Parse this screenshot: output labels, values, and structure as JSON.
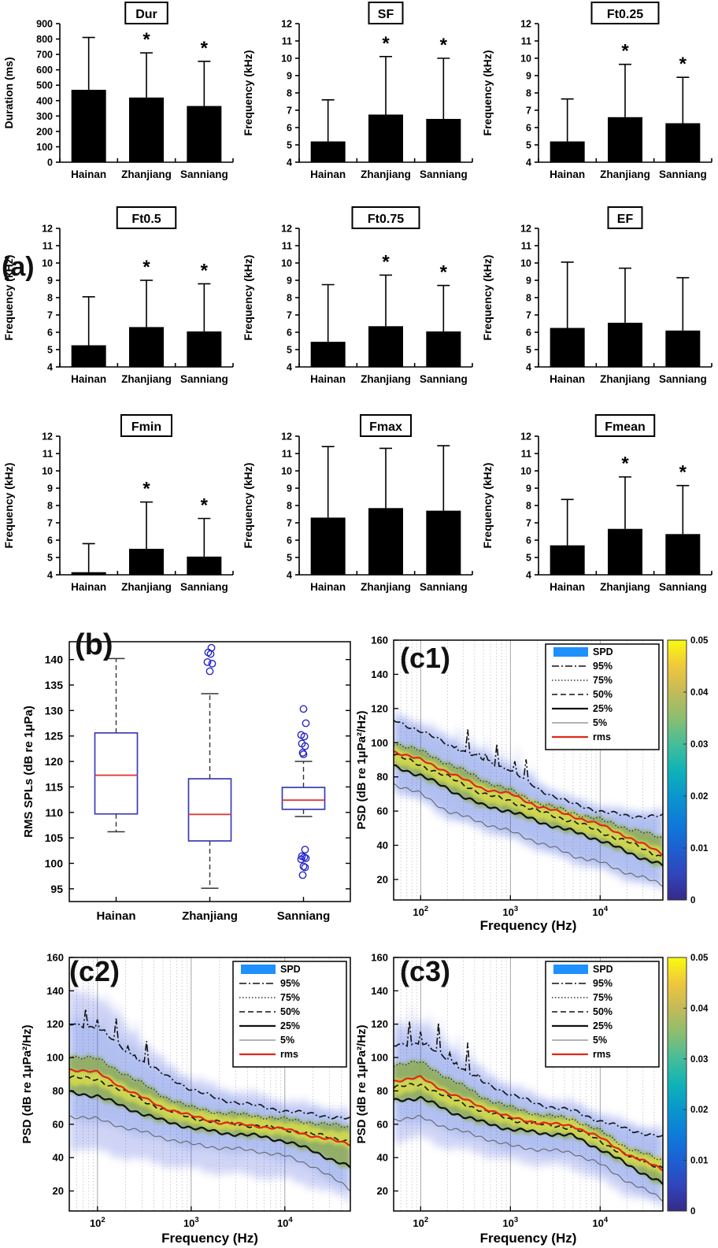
{
  "ui": {
    "panel_labels": {
      "a": "(a)",
      "b": "(b)",
      "c1": "(c1)",
      "c2": "(c2)",
      "c3": "(c3)"
    },
    "sig_marker": "*",
    "colors": {
      "bar": "#000000",
      "box_edge": "#3a3ab8",
      "median": "#e03a3a",
      "outlier": "#2626cc",
      "rms_line": "#e02818",
      "spd_patch": "#1e90ff",
      "colorbar_low": "#352a87",
      "colorbar_high": "#f9fb0e"
    }
  },
  "chart_data": [
    {
      "id": "dur",
      "type": "bar",
      "title": "Dur",
      "ylabel": "Duration (ms)",
      "ylim": [
        0,
        900
      ],
      "ytick_step": 100,
      "categories": [
        "Hainan",
        "Zhanjiang",
        "Sanniang"
      ],
      "values": [
        470,
        420,
        365
      ],
      "error_tops": [
        810,
        710,
        655
      ],
      "significant": [
        false,
        true,
        true
      ]
    },
    {
      "id": "sf",
      "type": "bar",
      "title": "SF",
      "ylabel": "Frequency (kHz)",
      "ylim": [
        4,
        12
      ],
      "ytick_step": 1,
      "categories": [
        "Hainan",
        "Zhanjiang",
        "Sanniang"
      ],
      "values": [
        5.2,
        6.75,
        6.5
      ],
      "error_tops": [
        7.6,
        10.1,
        10.0
      ],
      "significant": [
        false,
        true,
        true
      ]
    },
    {
      "id": "ft025",
      "type": "bar",
      "title": "Ft0.25",
      "ylabel": "Frequency (kHz)",
      "ylim": [
        4,
        12
      ],
      "ytick_step": 1,
      "categories": [
        "Hainan",
        "Zhanjiang",
        "Sanniang"
      ],
      "values": [
        5.2,
        6.6,
        6.25
      ],
      "error_tops": [
        7.65,
        9.65,
        8.9
      ],
      "significant": [
        false,
        true,
        true
      ]
    },
    {
      "id": "ft05",
      "type": "bar",
      "title": "Ft0.5",
      "ylabel": "Frequency (kHz)",
      "ylim": [
        4,
        12
      ],
      "ytick_step": 1,
      "categories": [
        "Hainan",
        "Zhanjiang",
        "Sanniang"
      ],
      "values": [
        5.25,
        6.3,
        6.05
      ],
      "error_tops": [
        8.05,
        9.0,
        8.8
      ],
      "significant": [
        false,
        true,
        true
      ]
    },
    {
      "id": "ft075",
      "type": "bar",
      "title": "Ft0.75",
      "ylabel": "Frequency (kHz)",
      "ylim": [
        4,
        12
      ],
      "ytick_step": 1,
      "categories": [
        "Hainan",
        "Zhanjiang",
        "Sanniang"
      ],
      "values": [
        5.45,
        6.35,
        6.05
      ],
      "error_tops": [
        8.75,
        9.3,
        8.7
      ],
      "significant": [
        false,
        true,
        true
      ]
    },
    {
      "id": "ef",
      "type": "bar",
      "title": "EF",
      "ylabel": "Frequency (kHz)",
      "ylim": [
        4,
        12
      ],
      "ytick_step": 1,
      "categories": [
        "Hainan",
        "Zhanjiang",
        "Sanniang"
      ],
      "values": [
        6.25,
        6.55,
        6.1
      ],
      "error_tops": [
        10.05,
        9.7,
        9.15
      ],
      "significant": [
        false,
        false,
        false
      ]
    },
    {
      "id": "fmin",
      "type": "bar",
      "title": "Fmin",
      "ylabel": "Frequency (kHz)",
      "ylim": [
        4,
        12
      ],
      "ytick_step": 1,
      "categories": [
        "Hainan",
        "Zhanjiang",
        "Sanniang"
      ],
      "values": [
        4.15,
        5.5,
        5.05
      ],
      "error_tops": [
        5.8,
        8.2,
        7.25
      ],
      "significant": [
        false,
        true,
        true
      ]
    },
    {
      "id": "fmax",
      "type": "bar",
      "title": "Fmax",
      "ylabel": "Frequency (kHz)",
      "ylim": [
        4,
        12
      ],
      "ytick_step": 1,
      "categories": [
        "Hainan",
        "Zhanjiang",
        "Sanniang"
      ],
      "values": [
        7.3,
        7.85,
        7.7
      ],
      "error_tops": [
        11.4,
        11.3,
        11.45
      ],
      "significant": [
        false,
        false,
        false
      ]
    },
    {
      "id": "fmean",
      "type": "bar",
      "title": "Fmean",
      "ylabel": "Frequency (kHz)",
      "ylim": [
        4,
        12
      ],
      "ytick_step": 1,
      "categories": [
        "Hainan",
        "Zhanjiang",
        "Sanniang"
      ],
      "values": [
        5.7,
        6.65,
        6.35
      ],
      "error_tops": [
        8.35,
        9.65,
        9.15
      ],
      "significant": [
        false,
        true,
        true
      ]
    },
    {
      "id": "b",
      "type": "box",
      "ylabel": "RMS SPLs (dB re 1μPa)",
      "ylim": [
        92.5,
        143.5
      ],
      "yticks": [
        95,
        100,
        105,
        110,
        115,
        120,
        125,
        130,
        135,
        140
      ],
      "categories": [
        "Hainan",
        "Zhanjiang",
        "Sanniang"
      ],
      "boxes": [
        {
          "label": "Hainan",
          "whisker_low": 106.2,
          "q1": 109.7,
          "median": 117.3,
          "q3": 125.6,
          "whisker_high": 140.2,
          "outliers": []
        },
        {
          "label": "Zhanjiang",
          "whisker_low": 95.1,
          "q1": 104.4,
          "median": 109.6,
          "q3": 116.6,
          "whisker_high": 133.3,
          "outliers": [
            137.7,
            139.2,
            139.5,
            141.1,
            141.4,
            142.3
          ]
        },
        {
          "label": "Sanniang",
          "whisker_low": 109.2,
          "q1": 110.6,
          "median": 112.4,
          "q3": 114.9,
          "whisker_high": 120.0,
          "outliers": [
            130.3,
            127.5,
            125.2,
            124.9,
            123.5,
            123.0,
            121.7,
            121.4,
            102.7,
            101.4,
            101.2,
            101.0,
            100.8,
            99.4,
            99.2,
            97.7
          ]
        }
      ]
    },
    {
      "id": "c1",
      "type": "spd",
      "xlabel": "Frequency (Hz)",
      "ylabel": "PSD (dB re 1μPa²/Hz)",
      "xlim_hz": [
        50,
        50000
      ],
      "xticks_hz": [
        100,
        1000,
        10000
      ],
      "ylim": [
        8,
        160
      ],
      "yticks": [
        20,
        40,
        60,
        80,
        100,
        120,
        140,
        160
      ],
      "legend": [
        {
          "label": "SPD",
          "style": "patch"
        },
        {
          "label": "95%",
          "style": "dashdot"
        },
        {
          "label": "75%",
          "style": "dotted"
        },
        {
          "label": "50%",
          "style": "dashed"
        },
        {
          "label": "25%",
          "style": "solid-thick"
        },
        {
          "label": "5%",
          "style": "solid-thin"
        },
        {
          "label": "rms",
          "style": "solid-red"
        }
      ],
      "colorbar": {
        "show": true,
        "min": 0,
        "max": 0.05,
        "ticks": [
          0,
          0.01,
          0.02,
          0.03,
          0.04,
          0.05
        ]
      },
      "freq_hz": [
        50,
        100,
        200,
        500,
        1000,
        2000,
        5000,
        10000,
        20000,
        50000
      ],
      "percentiles": {
        "p95": [
          113,
          107,
          99,
          90,
          84,
          73,
          64,
          60,
          57,
          57
        ],
        "p75": [
          100,
          95,
          88,
          78,
          72,
          65,
          59,
          55,
          50,
          44
        ],
        "p50": [
          93,
          87,
          80,
          70,
          66,
          60,
          54,
          48,
          42,
          33
        ],
        "p25": [
          86,
          81,
          73,
          63,
          60,
          54,
          48,
          43,
          36,
          28
        ],
        "p5": [
          76,
          70,
          60,
          53,
          48,
          42,
          34,
          30,
          24,
          17
        ]
      },
      "rms": [
        95,
        90,
        83,
        73,
        70,
        63,
        57,
        52,
        45,
        35
      ],
      "cloud_top": [
        118,
        112,
        104,
        94,
        88,
        77,
        67,
        63,
        60,
        60
      ],
      "cloud_bottom": [
        72,
        66,
        56,
        49,
        44,
        38,
        30,
        26,
        20,
        15
      ],
      "tonal_spikes": {
        "range_hz": [
          250,
          1800
        ],
        "amplitude_db": 14
      }
    },
    {
      "id": "c2",
      "type": "spd",
      "xlabel": "Frequency (Hz)",
      "ylabel": "PSD (dB re 1μPa²/Hz)",
      "xlim_hz": [
        50,
        50000
      ],
      "xticks_hz": [
        100,
        1000,
        10000
      ],
      "ylim": [
        8,
        160
      ],
      "yticks": [
        20,
        40,
        60,
        80,
        100,
        120,
        140,
        160
      ],
      "legend": [
        {
          "label": "SPD",
          "style": "patch"
        },
        {
          "label": "95%",
          "style": "dashdot"
        },
        {
          "label": "75%",
          "style": "dotted"
        },
        {
          "label": "50%",
          "style": "dashed"
        },
        {
          "label": "25%",
          "style": "solid-thick"
        },
        {
          "label": "5%",
          "style": "solid-thin"
        },
        {
          "label": "rms",
          "style": "solid-red"
        }
      ],
      "colorbar": {
        "show": false,
        "min": 0,
        "max": 0.05,
        "ticks": [
          0,
          0.01,
          0.02,
          0.03,
          0.04,
          0.05
        ]
      },
      "freq_hz": [
        50,
        100,
        200,
        500,
        1000,
        2000,
        5000,
        10000,
        20000,
        50000
      ],
      "percentiles": {
        "p95": [
          120,
          118,
          104,
          90,
          81,
          75,
          71,
          68,
          66,
          63
        ],
        "p75": [
          101,
          99,
          90,
          77,
          70,
          67,
          65,
          63,
          61,
          58
        ],
        "p50": [
          88,
          87,
          79,
          69,
          64,
          61,
          59,
          57,
          54,
          50
        ],
        "p25": [
          79,
          77,
          70,
          62,
          58,
          55,
          53,
          50,
          44,
          34
        ],
        "p5": [
          65,
          63,
          58,
          52,
          48,
          46,
          44,
          41,
          35,
          21
        ]
      },
      "rms": [
        93,
        91,
        81,
        70,
        65,
        61,
        59,
        57,
        53,
        48
      ],
      "cloud_top": [
        140,
        136,
        120,
        98,
        88,
        82,
        78,
        74,
        72,
        68
      ],
      "cloud_bottom": [
        46,
        44,
        40,
        36,
        33,
        31,
        29,
        27,
        23,
        14
      ],
      "tonal_spikes": {
        "range_hz": [
          50,
          350
        ],
        "amplitude_db": 14
      }
    },
    {
      "id": "c3",
      "type": "spd",
      "xlabel": "Frequency (Hz)",
      "ylabel": "PSD (dB re 1μPa²/Hz)",
      "xlim_hz": [
        50,
        50000
      ],
      "xticks_hz": [
        100,
        1000,
        10000
      ],
      "ylim": [
        8,
        160
      ],
      "yticks": [
        20,
        40,
        60,
        80,
        100,
        120,
        140,
        160
      ],
      "legend": [
        {
          "label": "SPD",
          "style": "patch"
        },
        {
          "label": "95%",
          "style": "dashdot"
        },
        {
          "label": "75%",
          "style": "dotted"
        },
        {
          "label": "50%",
          "style": "dashed"
        },
        {
          "label": "25%",
          "style": "solid-thick"
        },
        {
          "label": "5%",
          "style": "solid-thin"
        },
        {
          "label": "rms",
          "style": "solid-red"
        }
      ],
      "colorbar": {
        "show": true,
        "min": 0,
        "max": 0.05,
        "ticks": [
          0,
          0.01,
          0.02,
          0.03,
          0.04,
          0.05
        ]
      },
      "freq_hz": [
        50,
        100,
        200,
        500,
        1000,
        2000,
        5000,
        10000,
        20000,
        50000
      ],
      "percentiles": {
        "p95": [
          107,
          109,
          99,
          85,
          78,
          72,
          68,
          62,
          57,
          52
        ],
        "p75": [
          96,
          97,
          88,
          76,
          70,
          66,
          63,
          56,
          46,
          38
        ],
        "p50": [
          82,
          84,
          76,
          68,
          63,
          60,
          58,
          50,
          41,
          34
        ],
        "p25": [
          74,
          76,
          68,
          61,
          57,
          55,
          53,
          45,
          36,
          24
        ],
        "p5": [
          63,
          64,
          58,
          52,
          47,
          45,
          43,
          36,
          26,
          15
        ]
      },
      "rms": [
        86,
        88,
        79,
        70,
        64,
        61,
        59,
        52,
        42,
        33
      ],
      "cloud_top": [
        118,
        122,
        108,
        92,
        84,
        77,
        73,
        67,
        61,
        57
      ],
      "cloud_bottom": [
        50,
        52,
        46,
        42,
        38,
        36,
        34,
        26,
        18,
        11
      ],
      "tonal_spikes": {
        "range_hz": [
          55,
          500
        ],
        "amplitude_db": 18
      }
    }
  ]
}
